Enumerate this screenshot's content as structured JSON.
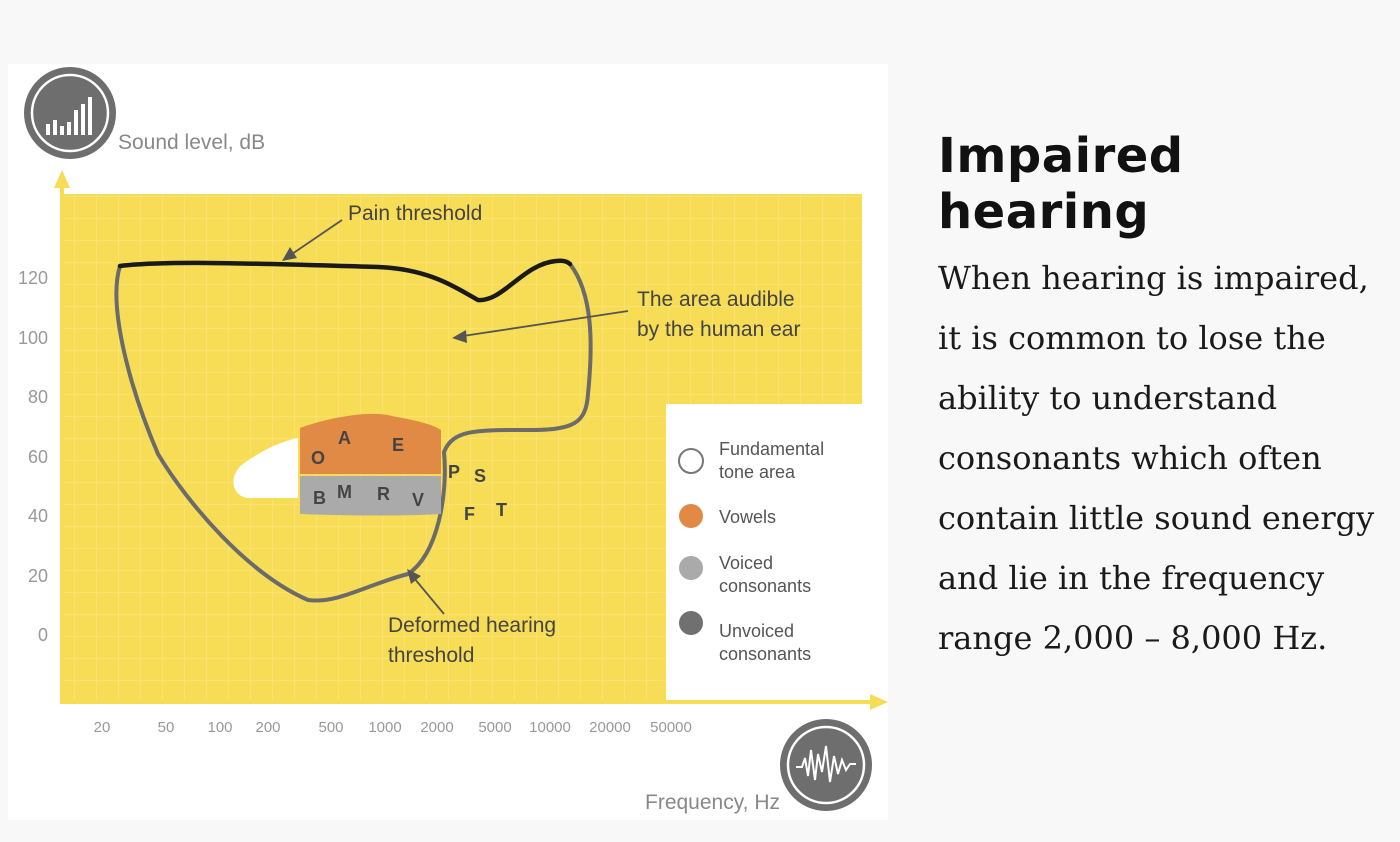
{
  "figure": {
    "y_axis_title": "Sound level, dB",
    "x_axis_title": "Frequency, Hz",
    "y_ticks": [
      "120",
      "100",
      "80",
      "60",
      "40",
      "20",
      "0"
    ],
    "x_ticks": [
      "20",
      "50",
      "100",
      "200",
      "500",
      "1000",
      "2000",
      "5000",
      "10000",
      "20000",
      "50000"
    ],
    "callouts": {
      "pain_threshold": "Pain threshold",
      "audible_area_line1": "The area audible",
      "audible_area_line2": "by the human ear",
      "deformed_line1": "Deformed hearing",
      "deformed_line2": "threshold"
    },
    "vowel_letters": [
      "O",
      "A",
      "E"
    ],
    "voiced_letters": [
      "B",
      "M",
      "R",
      "V"
    ],
    "unvoiced_letters": [
      "P",
      "S",
      "F",
      "T"
    ],
    "legend": [
      {
        "line1": "Fundamental",
        "line2": "tone area",
        "color": "#ffffff"
      },
      {
        "line1": "Vowels",
        "line2": "",
        "color": "#e08a45"
      },
      {
        "line1": "Voiced",
        "line2": "consonants",
        "color": "#aaaaaa"
      },
      {
        "line1": "Unvoiced",
        "line2": "consonants",
        "color": "#707070"
      }
    ],
    "colors": {
      "background_yellow": "#f7dc55",
      "pain_threshold_line": "#1a1a1a",
      "hearing_threshold_line": "#6b6b6b",
      "icon_gray": "#6e6e6e"
    },
    "icons": [
      "bar-chart-icon",
      "sound-wave-icon"
    ]
  },
  "article": {
    "title": "Impaired hearing",
    "body": "When hearing is impaired, it is common to lose the ability to understand consonants which often contain little sound energy and lie in the frequency range 2,000 – 8,000 Hz."
  }
}
